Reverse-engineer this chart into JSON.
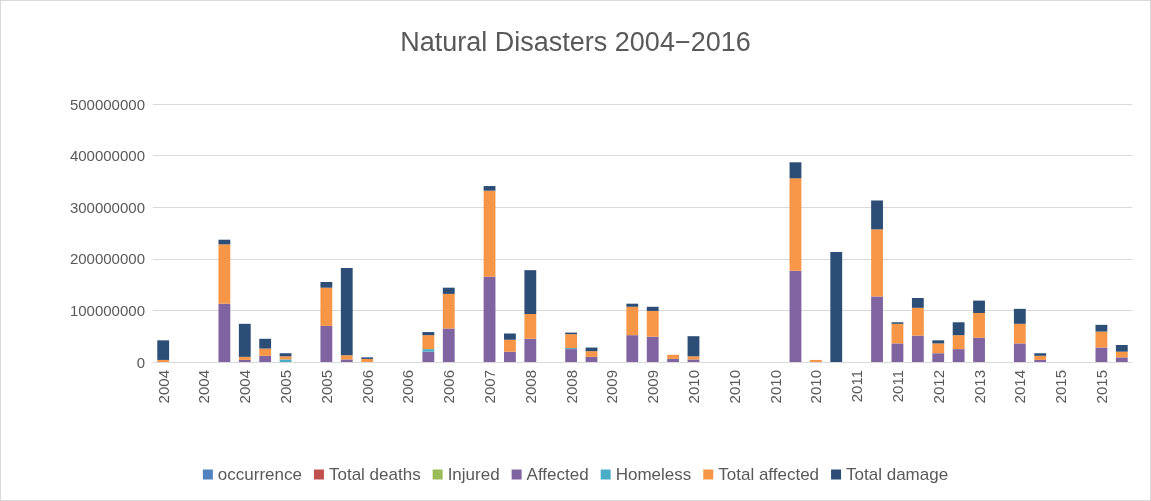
{
  "chart_data": {
    "type": "bar",
    "title": "Natural Disasters 2004−2016",
    "stacked": true,
    "legend": "bottom",
    "grid": "y",
    "categories": [
      "2004",
      null,
      "2004",
      null,
      "2004",
      null,
      "2005",
      null,
      "2005",
      null,
      "2006",
      null,
      "2006",
      null,
      "2006",
      null,
      "2007",
      null,
      "2008",
      null,
      "2008",
      null,
      "2009",
      null,
      "2009",
      null,
      "2010",
      null,
      "2010",
      null,
      "2010",
      null,
      "2010",
      null,
      "2011",
      null,
      "2011",
      null,
      "2012",
      null,
      "2013",
      null,
      "2014",
      null,
      "2015",
      null,
      "2015",
      null
    ],
    "ylim": [
      0,
      500000000
    ],
    "yticks": [
      0,
      100000000,
      200000000,
      300000000,
      400000000,
      500000000
    ],
    "series": [
      {
        "name": "occurrence",
        "color": "#4f81bd",
        "values": [
          0,
          0,
          0,
          0,
          0,
          0,
          0,
          0,
          0,
          0,
          0,
          0,
          0,
          0,
          0,
          0,
          0,
          0,
          0,
          0,
          0,
          0,
          0,
          0,
          0,
          0,
          0,
          0,
          0,
          0,
          0,
          0,
          0,
          0,
          0,
          0,
          0,
          0,
          0,
          0,
          0,
          0,
          0,
          0,
          0,
          0,
          0,
          0
        ]
      },
      {
        "name": "Total deaths",
        "color": "#c0504d",
        "values": [
          0,
          0,
          0,
          0,
          0,
          0,
          0,
          0,
          0,
          0,
          0,
          0,
          0,
          0,
          0,
          0,
          0,
          0,
          0,
          0,
          0,
          0,
          0,
          0,
          0,
          0,
          0,
          0,
          0,
          0,
          0,
          0,
          0,
          0,
          0,
          0,
          0,
          0,
          0,
          0,
          0,
          0,
          0,
          0,
          0,
          0,
          0,
          0
        ]
      },
      {
        "name": "Injured",
        "color": "#9bbb59",
        "values": [
          0,
          0,
          0,
          0,
          0,
          0,
          0,
          0,
          0,
          0,
          0,
          0,
          0,
          0,
          0,
          0,
          0,
          0,
          0,
          0,
          0,
          0,
          0,
          0,
          0,
          0,
          0,
          0,
          0,
          0,
          0,
          0,
          0,
          0,
          0,
          0,
          0,
          0,
          0,
          0,
          0,
          0,
          0,
          0,
          0,
          0,
          0,
          0
        ]
      },
      {
        "name": "Affected",
        "color": "#8064a2",
        "values": [
          0,
          0,
          0,
          113000000,
          4000000,
          12000000,
          0,
          0,
          70000000,
          5000000,
          0,
          0,
          0,
          20000000,
          65000000,
          0,
          165000000,
          20000000,
          45000000,
          0,
          25000000,
          10000000,
          0,
          52000000,
          49000000,
          6000000,
          5000000,
          0,
          0,
          0,
          0,
          177000000,
          0,
          0,
          0,
          127000000,
          36000000,
          51000000,
          17000000,
          25000000,
          47000000,
          0,
          36000000,
          4000000,
          0,
          0,
          28000000,
          9000000
        ]
      },
      {
        "name": "Homeless",
        "color": "#4bacc6",
        "values": [
          0,
          0,
          0,
          0,
          0,
          0,
          5000000,
          0,
          0,
          0,
          0,
          0,
          0,
          5000000,
          0,
          0,
          0,
          0,
          0,
          0,
          2000000,
          0,
          0,
          0,
          0,
          0,
          0,
          0,
          0,
          0,
          0,
          0,
          0,
          0,
          0,
          0,
          0,
          0,
          0,
          0,
          0,
          0,
          0,
          0,
          0,
          0,
          0,
          0
        ]
      },
      {
        "name": "Total affected",
        "color": "#f79646",
        "values": [
          4000000,
          0,
          0,
          115000000,
          6000000,
          14000000,
          6000000,
          0,
          74000000,
          8000000,
          6000000,
          0,
          0,
          27000000,
          67000000,
          0,
          167000000,
          23000000,
          48000000,
          0,
          27000000,
          11000000,
          0,
          55000000,
          50000000,
          8000000,
          6000000,
          0,
          0,
          0,
          0,
          179000000,
          4000000,
          0,
          0,
          130000000,
          38000000,
          54000000,
          19000000,
          27000000,
          48000000,
          0,
          38000000,
          8000000,
          0,
          0,
          31000000,
          11000000
        ]
      },
      {
        "name": "Total damage",
        "color": "#2c4d75",
        "values": [
          38000000,
          0,
          0,
          9000000,
          64000000,
          19000000,
          6000000,
          0,
          11000000,
          169000000,
          3000000,
          0,
          0,
          6000000,
          12000000,
          0,
          9000000,
          12000000,
          85000000,
          0,
          3000000,
          7000000,
          0,
          6000000,
          8000000,
          0,
          39000000,
          0,
          0,
          0,
          0,
          31000000,
          0,
          213000000,
          0,
          56000000,
          3000000,
          19000000,
          6000000,
          25000000,
          24000000,
          0,
          29000000,
          5000000,
          0,
          0,
          13000000,
          13000000
        ]
      }
    ]
  }
}
